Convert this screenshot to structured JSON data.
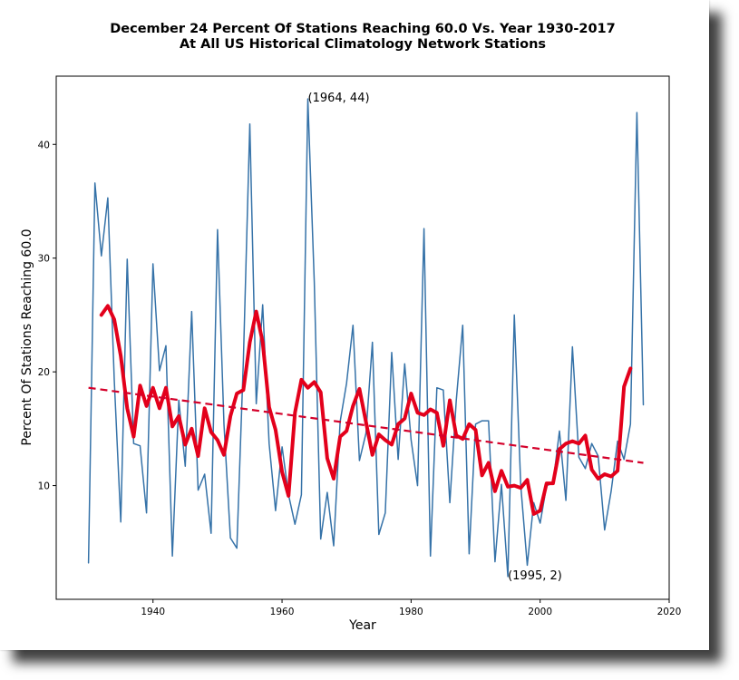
{
  "chart_data": {
    "type": "line",
    "title": "December 24 Percent Of Stations Reaching 60.0 Vs. Year 1930-2017",
    "subtitle": "At All US Historical Climatology Network Stations",
    "xlabel": "Year",
    "ylabel": "Percent Of Stations Reaching 60.0",
    "xlim": [
      1925,
      2020
    ],
    "ylim": [
      0,
      46
    ],
    "xticks": [
      1940,
      1960,
      1980,
      2000,
      2020
    ],
    "yticks": [
      10,
      20,
      30,
      40
    ],
    "grid": false,
    "series": [
      {
        "color": "#3572a8",
        "x": [
          1930,
          1931,
          1932,
          1933,
          1934,
          1935,
          1936,
          1937,
          1938,
          1939,
          1940,
          1941,
          1942,
          1943,
          1944,
          1945,
          1946,
          1947,
          1948,
          1949,
          1950,
          1951,
          1952,
          1953,
          1954,
          1955,
          1956,
          1957,
          1958,
          1959,
          1960,
          1961,
          1962,
          1963,
          1964,
          1965,
          1966,
          1967,
          1968,
          1969,
          1970,
          1971,
          1972,
          1973,
          1974,
          1975,
          1976,
          1977,
          1978,
          1979,
          1980,
          1981,
          1982,
          1983,
          1984,
          1985,
          1986,
          1987,
          1988,
          1989,
          1990,
          1991,
          1992,
          1993,
          1994,
          1995,
          1996,
          1997,
          1998,
          1999,
          2000,
          2001,
          2002,
          2003,
          2004,
          2005,
          2006,
          2007,
          2008,
          2009,
          2010,
          2011,
          2012,
          2013,
          2014,
          2015,
          2016
        ],
        "values": [
          3.2,
          36.6,
          30.2,
          35.3,
          19.3,
          6.8,
          29.9,
          13.7,
          13.5,
          7.6,
          29.5,
          20.1,
          22.3,
          3.8,
          17.5,
          11.7,
          25.3,
          9.6,
          11.0,
          5.8,
          32.5,
          15.4,
          5.4,
          4.5,
          21.0,
          41.8,
          17.2,
          25.9,
          13.7,
          7.8,
          13.4,
          9.2,
          6.6,
          9.2,
          44.0,
          27.9,
          5.3,
          9.4,
          4.7,
          15.6,
          19.0,
          24.1,
          12.2,
          14.6,
          22.6,
          5.7,
          7.6,
          21.7,
          12.3,
          20.7,
          14.0,
          10.0,
          32.6,
          3.8,
          18.6,
          18.4,
          8.5,
          17.5,
          24.1,
          4.0,
          15.4,
          15.7,
          15.7,
          3.3,
          10.1,
          2.0,
          25.0,
          10.0,
          3.0,
          8.5,
          6.7,
          10.0,
          10.2,
          14.8,
          8.7,
          22.2,
          12.5,
          11.5,
          13.7,
          12.6,
          6.1,
          9.5,
          13.9,
          12.3,
          15.4,
          42.8,
          17.1
        ]
      },
      {
        "color": "#e3001b",
        "x": [
          1932,
          1933,
          1934,
          1935,
          1936,
          1937,
          1938,
          1939,
          1940,
          1941,
          1942,
          1943,
          1944,
          1945,
          1946,
          1947,
          1948,
          1949,
          1950,
          1951,
          1952,
          1953,
          1954,
          1955,
          1956,
          1957,
          1958,
          1959,
          1960,
          1961,
          1962,
          1963,
          1964,
          1965,
          1966,
          1967,
          1968,
          1969,
          1970,
          1971,
          1972,
          1973,
          1974,
          1975,
          1976,
          1977,
          1978,
          1979,
          1980,
          1981,
          1982,
          1983,
          1984,
          1985,
          1986,
          1987,
          1988,
          1989,
          1990,
          1991,
          1992,
          1993,
          1994,
          1995,
          1996,
          1997,
          1998,
          1999,
          2000,
          2001,
          2002,
          2003,
          2004,
          2005,
          2006,
          2007,
          2008,
          2009,
          2010,
          2011,
          2012,
          2013,
          2014
        ],
        "values": [
          25.0,
          25.8,
          24.6,
          21.4,
          16.8,
          14.3,
          18.8,
          17.0,
          18.6,
          16.8,
          18.6,
          15.2,
          16.1,
          13.6,
          15.0,
          12.6,
          16.8,
          14.7,
          14.0,
          12.7,
          16.1,
          18.1,
          18.4,
          22.6,
          25.3,
          22.6,
          16.9,
          14.9,
          11.2,
          9.1,
          16.4,
          19.3,
          18.6,
          19.1,
          18.2,
          12.4,
          10.6,
          14.3,
          14.8,
          17.0,
          18.5,
          15.6,
          12.7,
          14.5,
          14.0,
          13.6,
          15.4,
          15.9,
          18.1,
          16.4,
          16.2,
          16.7,
          16.4,
          13.5,
          17.5,
          14.4,
          14.1,
          15.4,
          14.9,
          10.9,
          12.0,
          9.5,
          11.3,
          9.9,
          10.0,
          9.8,
          10.5,
          7.5,
          7.8,
          10.2,
          10.2,
          13.2,
          13.7,
          13.9,
          13.7,
          14.4,
          11.4,
          10.6,
          11.0,
          10.8,
          11.3,
          18.7,
          20.3
        ]
      },
      {
        "color": "#d4002a",
        "style": "dashed",
        "x": [
          1930,
          2016
        ],
        "values": [
          18.6,
          12.0
        ]
      }
    ],
    "annotations": [
      {
        "text": "(1964, 44)",
        "x": 1964,
        "y": 44
      },
      {
        "text": "(1995, 2)",
        "x": 1995,
        "y": 2
      }
    ]
  }
}
